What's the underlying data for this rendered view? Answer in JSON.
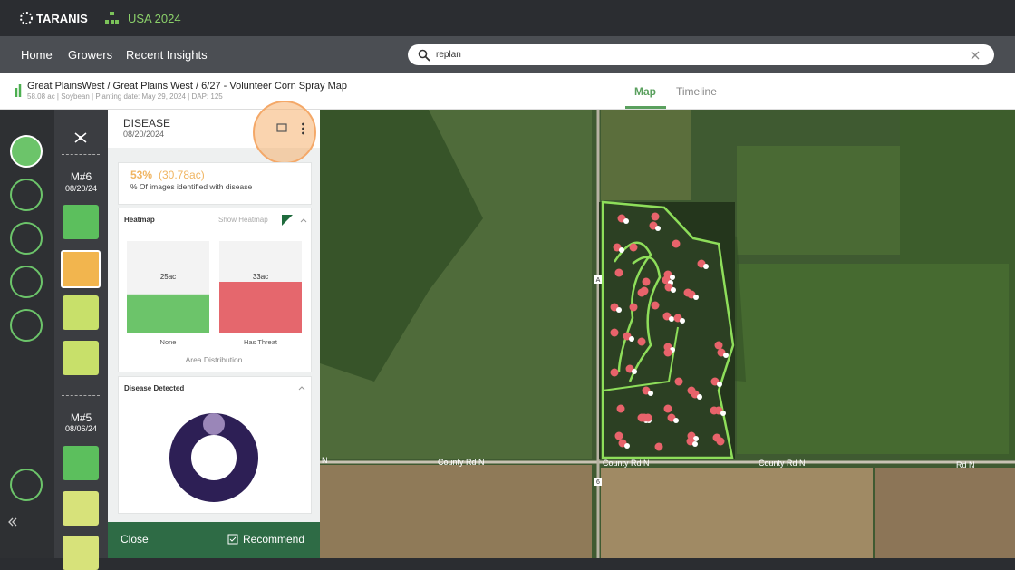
{
  "topbar": {
    "brand": "TARANIS",
    "region": "USA 2024"
  },
  "nav": {
    "items": [
      "Home",
      "Growers",
      "Recent Insights"
    ],
    "search": "replan"
  },
  "header": {
    "breadcrumb": "Great PlainsWest / Great Plains West / 6/27 - Volunteer Corn Spray Map",
    "details": "58.08 ac | Soybean | Planting date: May 29, 2024 | DAP: 125",
    "tabs": [
      "Map",
      "Timeline"
    ]
  },
  "missions": [
    {
      "name": "M#6",
      "date": "08/20/24"
    },
    {
      "name": "M#5",
      "date": "08/06/24"
    }
  ],
  "panel": {
    "title": "DISEASE",
    "date": "08/20/2024",
    "summary": {
      "percent": "53%",
      "area": "(30.78ac)",
      "caption": "% Of images identified with disease"
    },
    "heatmap": {
      "title": "Heatmap",
      "toggle": "Show Heatmap",
      "bars": [
        {
          "value": 25,
          "label": "25ac",
          "name": "None",
          "color": "#6cc46a"
        },
        {
          "value": 33,
          "label": "33ac",
          "name": "Has Threat",
          "color": "#e5676d"
        }
      ],
      "caption": "Area Distribution"
    },
    "detected": {
      "title": "Disease Detected"
    },
    "footer": {
      "close": "Close",
      "recommend": "Recommend"
    }
  },
  "map": {
    "roads": [
      "County Rd N",
      "County Rd N",
      "County Rd N",
      "Rd N",
      "N"
    ],
    "markers": [
      "A",
      "6"
    ]
  }
}
